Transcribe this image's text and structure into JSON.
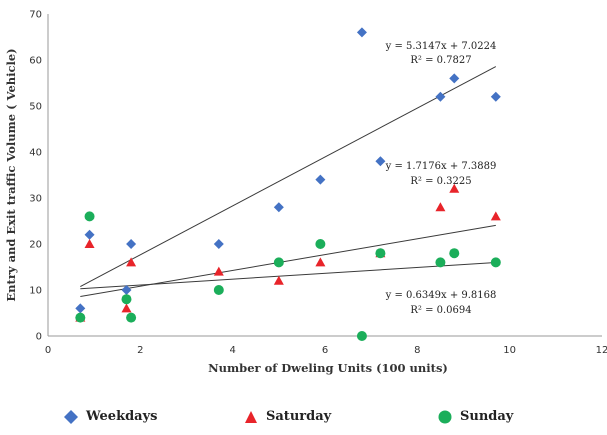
{
  "chart_data": {
    "type": "scatter",
    "title": "",
    "xlabel": "Number of Dweling  Units  (100 units)",
    "ylabel": "Entry and Exit traffic Volume  ( Vehicle)",
    "xlim": [
      0,
      12
    ],
    "ylim": [
      0,
      70
    ],
    "xticks": [
      "0",
      "2",
      "4",
      "6",
      "8",
      "10",
      "12"
    ],
    "yticks": [
      "0",
      "10",
      "20",
      "30",
      "40",
      "50",
      "60",
      "70"
    ],
    "grid": false,
    "legend_position": "bottom",
    "series": [
      {
        "name": "Weekdays",
        "marker": "diamond",
        "color": "#4472C4",
        "points": [
          [
            0.7,
            6
          ],
          [
            0.9,
            22
          ],
          [
            1.7,
            10
          ],
          [
            1.8,
            20
          ],
          [
            3.7,
            20
          ],
          [
            5.0,
            28
          ],
          [
            5.9,
            34
          ],
          [
            6.8,
            66
          ],
          [
            7.2,
            38
          ],
          [
            8.5,
            52
          ],
          [
            8.8,
            56
          ],
          [
            9.7,
            52
          ]
        ],
        "trendline": {
          "equation": "y = 5.3147x + 7.0224",
          "r2": "R² = 0.7827",
          "slope": 5.3147,
          "intercept": 7.0224,
          "x_range": [
            0.7,
            9.7
          ]
        }
      },
      {
        "name": "Saturday",
        "marker": "triangle",
        "color": "#E8242A",
        "points": [
          [
            0.7,
            4
          ],
          [
            0.9,
            20
          ],
          [
            1.7,
            6
          ],
          [
            1.8,
            16
          ],
          [
            3.7,
            14
          ],
          [
            5.0,
            12
          ],
          [
            5.9,
            16
          ],
          [
            7.2,
            18
          ],
          [
            8.5,
            28
          ],
          [
            8.8,
            32
          ],
          [
            9.7,
            26
          ]
        ],
        "trendline": {
          "equation": "y = 1.7176x + 7.3889",
          "r2": "R² = 0.3225",
          "slope": 1.7176,
          "intercept": 7.3889,
          "x_range": [
            0.7,
            9.7
          ]
        }
      },
      {
        "name": "Sunday",
        "marker": "circle",
        "color": "#1BAE5A",
        "points": [
          [
            0.7,
            4
          ],
          [
            0.9,
            26
          ],
          [
            1.7,
            8
          ],
          [
            1.8,
            4
          ],
          [
            3.7,
            10
          ],
          [
            5.0,
            16
          ],
          [
            5.9,
            20
          ],
          [
            6.8,
            0
          ],
          [
            7.2,
            18
          ],
          [
            8.5,
            16
          ],
          [
            8.8,
            18
          ],
          [
            9.7,
            16
          ]
        ],
        "trendline": {
          "equation": "y = 0.6349x + 9.8168",
          "r2": "R² = 0.0694",
          "slope": 0.6349,
          "intercept": 9.8168,
          "x_range": [
            0.7,
            9.7
          ]
        }
      }
    ]
  }
}
